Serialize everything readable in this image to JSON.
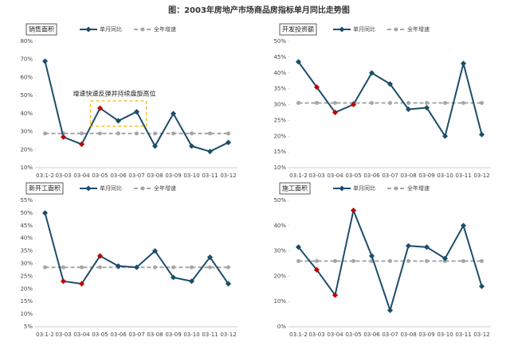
{
  "title": "图：2003年房地产市场商品房指标单月同比走势图",
  "chart_data": [
    {
      "type": "line",
      "title": "销售面积",
      "categories": [
        "03:1-2",
        "03-03",
        "03-04",
        "03-05",
        "03-06",
        "03-07",
        "03-08",
        "03-09",
        "03-10",
        "03-11",
        "03-12"
      ],
      "ylim": [
        10,
        80
      ],
      "yticks": [
        {
          "value": 10,
          "label": "10%"
        },
        {
          "value": 20,
          "label": "20%"
        },
        {
          "value": 30,
          "label": "30%"
        },
        {
          "value": 40,
          "label": "40%"
        },
        {
          "value": 50,
          "label": "50%"
        },
        {
          "value": 60,
          "label": "60%"
        },
        {
          "value": 70,
          "label": "70%"
        },
        {
          "value": 80,
          "label": "80%"
        }
      ],
      "series": [
        {
          "name": "单月同比",
          "color": "#1b4d6b",
          "values": [
            69,
            27,
            23,
            43,
            36,
            41,
            22,
            40,
            22,
            19,
            24
          ],
          "point_colors": [
            "#1b4d6b",
            "#c00000",
            "#c00000",
            "#c00000",
            "#1b4d6b",
            "#1b4d6b",
            "#1b4d6b",
            "#1b4d6b",
            "#1b4d6b",
            "#1b4d6b",
            "#1b4d6b"
          ]
        },
        {
          "name": "全年增速",
          "color": "#a6a6a6",
          "dashed": true,
          "values": [
            29,
            29,
            29,
            29,
            29,
            29,
            29,
            29,
            29,
            29,
            29
          ]
        }
      ],
      "annotation": "增速快速反弹并持续盘旋高位"
    },
    {
      "type": "line",
      "title": "开发投资额",
      "categories": [
        "03:1-2",
        "03-03",
        "03-04",
        "03-05",
        "03-06",
        "03-07",
        "03-08",
        "03-09",
        "03-10",
        "03-11",
        "03-12"
      ],
      "ylim": [
        10,
        50
      ],
      "yticks": [
        {
          "value": 10,
          "label": "10%"
        },
        {
          "value": 15,
          "label": "15%"
        },
        {
          "value": 20,
          "label": "20%"
        },
        {
          "value": 25,
          "label": "25%"
        },
        {
          "value": 30,
          "label": "30%"
        },
        {
          "value": 35,
          "label": "35%"
        },
        {
          "value": 40,
          "label": "40%"
        },
        {
          "value": 45,
          "label": "45%"
        },
        {
          "value": 50,
          "label": "50%"
        }
      ],
      "series": [
        {
          "name": "单月同比",
          "color": "#1b4d6b",
          "values": [
            43.5,
            35.5,
            27.5,
            30,
            40,
            36.5,
            28.5,
            29,
            20,
            43,
            20.5
          ],
          "point_colors": [
            "#1b4d6b",
            "#c00000",
            "#c00000",
            "#c00000",
            "#1b4d6b",
            "#1b4d6b",
            "#1b4d6b",
            "#1b4d6b",
            "#1b4d6b",
            "#1b4d6b",
            "#1b4d6b"
          ]
        },
        {
          "name": "全年增速",
          "color": "#a6a6a6",
          "dashed": true,
          "values": [
            30.5,
            30.5,
            30.5,
            30.5,
            30.5,
            30.5,
            30.5,
            30.5,
            30.5,
            30.5,
            30.5
          ]
        }
      ]
    },
    {
      "type": "line",
      "title": "新开工面积",
      "categories": [
        "03:1-2",
        "03-03",
        "03-04",
        "03-05",
        "03-06",
        "03-07",
        "03-08",
        "03-09",
        "03-10",
        "03-11",
        "03-12"
      ],
      "ylim": [
        5,
        55
      ],
      "yticks": [
        {
          "value": 5,
          "label": "5%"
        },
        {
          "value": 10,
          "label": "10%"
        },
        {
          "value": 15,
          "label": "15%"
        },
        {
          "value": 20,
          "label": "20%"
        },
        {
          "value": 25,
          "label": "25%"
        },
        {
          "value": 30,
          "label": "30%"
        },
        {
          "value": 35,
          "label": "35%"
        },
        {
          "value": 40,
          "label": "40%"
        },
        {
          "value": 45,
          "label": "45%"
        },
        {
          "value": 50,
          "label": "50%"
        },
        {
          "value": 55,
          "label": "55%"
        }
      ],
      "series": [
        {
          "name": "单月同比",
          "color": "#1b4d6b",
          "values": [
            50,
            23,
            22,
            33,
            29,
            28.5,
            35,
            24.5,
            23,
            32.5,
            22
          ],
          "point_colors": [
            "#1b4d6b",
            "#c00000",
            "#c00000",
            "#c00000",
            "#1b4d6b",
            "#1b4d6b",
            "#1b4d6b",
            "#1b4d6b",
            "#1b4d6b",
            "#1b4d6b",
            "#1b4d6b"
          ]
        },
        {
          "name": "全年增速",
          "color": "#a6a6a6",
          "dashed": true,
          "values": [
            28.5,
            28.5,
            28.5,
            28.5,
            28.5,
            28.5,
            28.5,
            28.5,
            28.5,
            28.5,
            28.5
          ]
        }
      ]
    },
    {
      "type": "line",
      "title": "施工面积",
      "categories": [
        "03:1-2",
        "03-03",
        "03-04",
        "03-05",
        "03-06",
        "03-07",
        "03-08",
        "03-09",
        "03-10",
        "03-11",
        "03-12"
      ],
      "ylim": [
        0,
        50
      ],
      "yticks": [
        {
          "value": 0,
          "label": "0%"
        },
        {
          "value": 10,
          "label": "10%"
        },
        {
          "value": 20,
          "label": "20%"
        },
        {
          "value": 30,
          "label": "30%"
        },
        {
          "value": 40,
          "label": "40%"
        },
        {
          "value": 50,
          "label": "50%"
        }
      ],
      "series": [
        {
          "name": "单月同比",
          "color": "#1b4d6b",
          "values": [
            31.5,
            22.5,
            12.5,
            46,
            28,
            6.5,
            32,
            31.5,
            27,
            40,
            16
          ],
          "point_colors": [
            "#1b4d6b",
            "#c00000",
            "#c00000",
            "#c00000",
            "#1b4d6b",
            "#1b4d6b",
            "#1b4d6b",
            "#1b4d6b",
            "#1b4d6b",
            "#1b4d6b",
            "#1b4d6b"
          ]
        },
        {
          "name": "全年增速",
          "color": "#a6a6a6",
          "dashed": true,
          "values": [
            26,
            26,
            26,
            26,
            26,
            26,
            26,
            26,
            26,
            26,
            26
          ]
        }
      ]
    }
  ]
}
